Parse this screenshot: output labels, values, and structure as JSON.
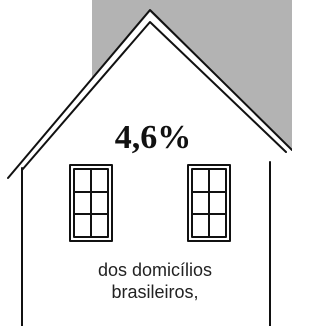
{
  "headline": "4,6%",
  "caption": {
    "lines": [
      "dos domicílios",
      "brasileiros,"
    ]
  }
}
